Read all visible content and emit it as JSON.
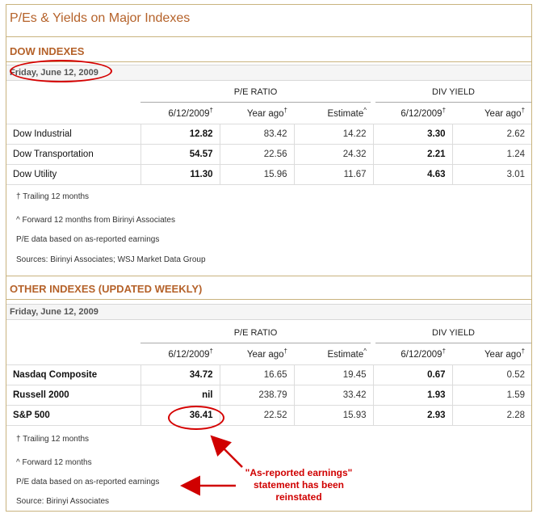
{
  "page": {
    "title": "P/Es & Yields on Major Indexes"
  },
  "dow": {
    "heading": "DOW INDEXES",
    "date": "Friday, June 12, 2009",
    "group_pe": "P/E RATIO",
    "group_div": "DIV YIELD",
    "columns": [
      "6/12/2009",
      "Year ago",
      "Estimate",
      "6/12/2009",
      "Year ago"
    ],
    "column_marks": [
      "†",
      "†",
      "^",
      "†",
      "†"
    ],
    "rows": [
      {
        "name": "Dow Industrial",
        "values": [
          "12.82",
          "83.42",
          "14.22",
          "3.30",
          "2.62"
        ]
      },
      {
        "name": "Dow Transportation",
        "values": [
          "54.57",
          "22.56",
          "24.32",
          "2.21",
          "1.24"
        ]
      },
      {
        "name": "Dow Utility",
        "values": [
          "11.30",
          "15.96",
          "11.67",
          "4.63",
          "3.01"
        ]
      }
    ],
    "notes": [
      "† Trailing 12 months",
      "^ Forward 12 months from Birinyi Associates",
      "P/E data based on as-reported earnings",
      "Sources: Birinyi Associates; WSJ Market Data Group"
    ]
  },
  "other": {
    "heading": "OTHER INDEXES (UPDATED WEEKLY)",
    "date": "Friday, June 12, 2009",
    "group_pe": "P/E RATIO",
    "group_div": "DIV YIELD",
    "columns": [
      "6/12/2009",
      "Year ago",
      "Estimate",
      "6/12/2009",
      "Year ago"
    ],
    "column_marks": [
      "†",
      "†",
      "^",
      "†",
      "†"
    ],
    "rows": [
      {
        "name": "Nasdaq Composite",
        "values": [
          "34.72",
          "16.65",
          "19.45",
          "0.67",
          "0.52"
        ]
      },
      {
        "name": "Russell 2000",
        "values": [
          "nil",
          "238.79",
          "33.42",
          "1.93",
          "1.59"
        ]
      },
      {
        "name": "S&P 500",
        "values": [
          "36.41",
          "22.52",
          "15.93",
          "2.93",
          "2.28"
        ]
      }
    ],
    "notes": [
      "† Trailing 12 months",
      "^ Forward 12 months",
      "P/E data based on as-reported earnings",
      "Source: Birinyi Associates"
    ]
  },
  "annotation": {
    "lines": [
      "\"As-reported earnings\"",
      "statement has been",
      "reinstated"
    ],
    "color": "#d00000"
  },
  "colors": {
    "accent": "#b5622a",
    "border": "#c9b37e",
    "annotation_red": "#d50000"
  }
}
